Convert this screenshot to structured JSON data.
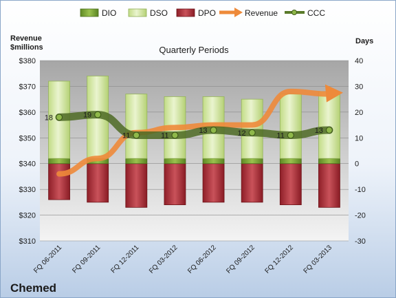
{
  "chart_data": {
    "type": "bar",
    "title": "Quarterly Periods",
    "company": "Chemed",
    "left_axis": {
      "label_line1": "Revenue",
      "label_line2": "$millions",
      "ylim": [
        310,
        380
      ],
      "ticks": [
        "$310",
        "$320",
        "$330",
        "$340",
        "$350",
        "$360",
        "$370",
        "$380"
      ]
    },
    "right_axis": {
      "label": "Days",
      "ylim": [
        -30,
        40
      ],
      "ticks": [
        "-30",
        "-20",
        "-10",
        "0",
        "10",
        "20",
        "30",
        "40"
      ]
    },
    "categories": [
      "FQ 06-2011",
      "FQ 09-2011",
      "FQ 12-2011",
      "FQ 03-2012",
      "FQ 06-2012",
      "FQ 09-2012",
      "FQ 12-2012",
      "FQ 03-2013"
    ],
    "legend": [
      {
        "name": "DIO",
        "color": "#7fa53a"
      },
      {
        "name": "DSO",
        "color": "#d6e8a8"
      },
      {
        "name": "DPO",
        "color": "#a8303a"
      },
      {
        "name": "Revenue",
        "color": "#ee8a3a"
      },
      {
        "name": "CCC",
        "color": "#5a7a2a"
      }
    ],
    "series": [
      {
        "name": "DIO",
        "axis": "right",
        "values": [
          2,
          2,
          2,
          2,
          2,
          2,
          2,
          2
        ]
      },
      {
        "name": "DSO",
        "axis": "right",
        "values": [
          30,
          32,
          25,
          24,
          24,
          23,
          25,
          26
        ]
      },
      {
        "name": "DPO",
        "axis": "right",
        "values": [
          -14,
          -15,
          -17,
          -16,
          -15,
          -15,
          -16,
          -17
        ]
      },
      {
        "name": "Revenue",
        "axis": "left",
        "values": [
          336,
          342,
          352,
          354,
          355,
          355,
          368,
          367
        ]
      },
      {
        "name": "CCC",
        "axis": "right",
        "values": [
          18,
          19,
          11,
          11,
          13,
          12,
          11,
          13
        ]
      }
    ],
    "ccc_labels": [
      "18",
      "19",
      "11",
      "11",
      "13",
      "12",
      "11",
      "13"
    ]
  }
}
